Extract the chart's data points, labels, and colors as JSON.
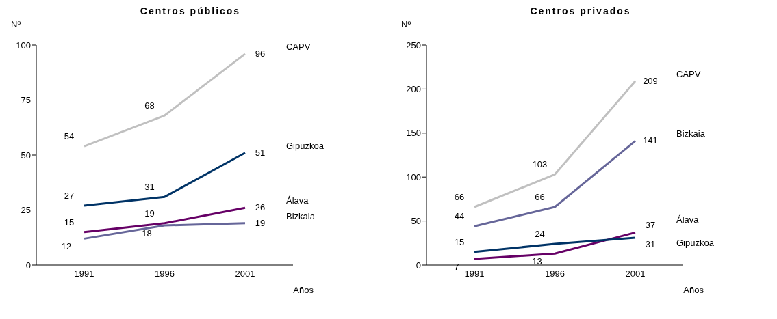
{
  "chart_data": [
    {
      "type": "line",
      "title": "Centros públicos",
      "ylabel": "Nº",
      "xlabel": "Años",
      "categories": [
        "1991",
        "1996",
        "2001"
      ],
      "ylim": [
        0,
        100
      ],
      "yticks": [
        0,
        25,
        50,
        75,
        100
      ],
      "grid": false,
      "marker": "none",
      "data_labels": true,
      "series": [
        {
          "name": "CAPV",
          "color": "#c0c0c0",
          "values": [
            54,
            68,
            96
          ]
        },
        {
          "name": "Gipuzkoa",
          "color": "#003366",
          "values": [
            27,
            31,
            51
          ]
        },
        {
          "name": "Álava",
          "color": "#660066",
          "values": [
            15,
            19,
            26
          ]
        },
        {
          "name": "Bizkaia",
          "color": "#666699",
          "values": [
            12,
            18,
            19
          ]
        }
      ]
    },
    {
      "type": "line",
      "title": "Centros privados",
      "ylabel": "Nº",
      "xlabel": "Años",
      "categories": [
        "1991",
        "1996",
        "2001"
      ],
      "ylim": [
        0,
        250
      ],
      "yticks": [
        0,
        50,
        100,
        150,
        200,
        250
      ],
      "grid": false,
      "marker": "none",
      "data_labels": true,
      "series": [
        {
          "name": "CAPV",
          "color": "#c0c0c0",
          "values": [
            66,
            103,
            209
          ]
        },
        {
          "name": "Bizkaia",
          "color": "#666699",
          "values": [
            44,
            66,
            141
          ]
        },
        {
          "name": "Álava",
          "color": "#660066",
          "values": [
            7,
            13,
            37
          ]
        },
        {
          "name": "Gipuzkoa",
          "color": "#003366",
          "values": [
            15,
            24,
            31
          ]
        }
      ]
    }
  ]
}
